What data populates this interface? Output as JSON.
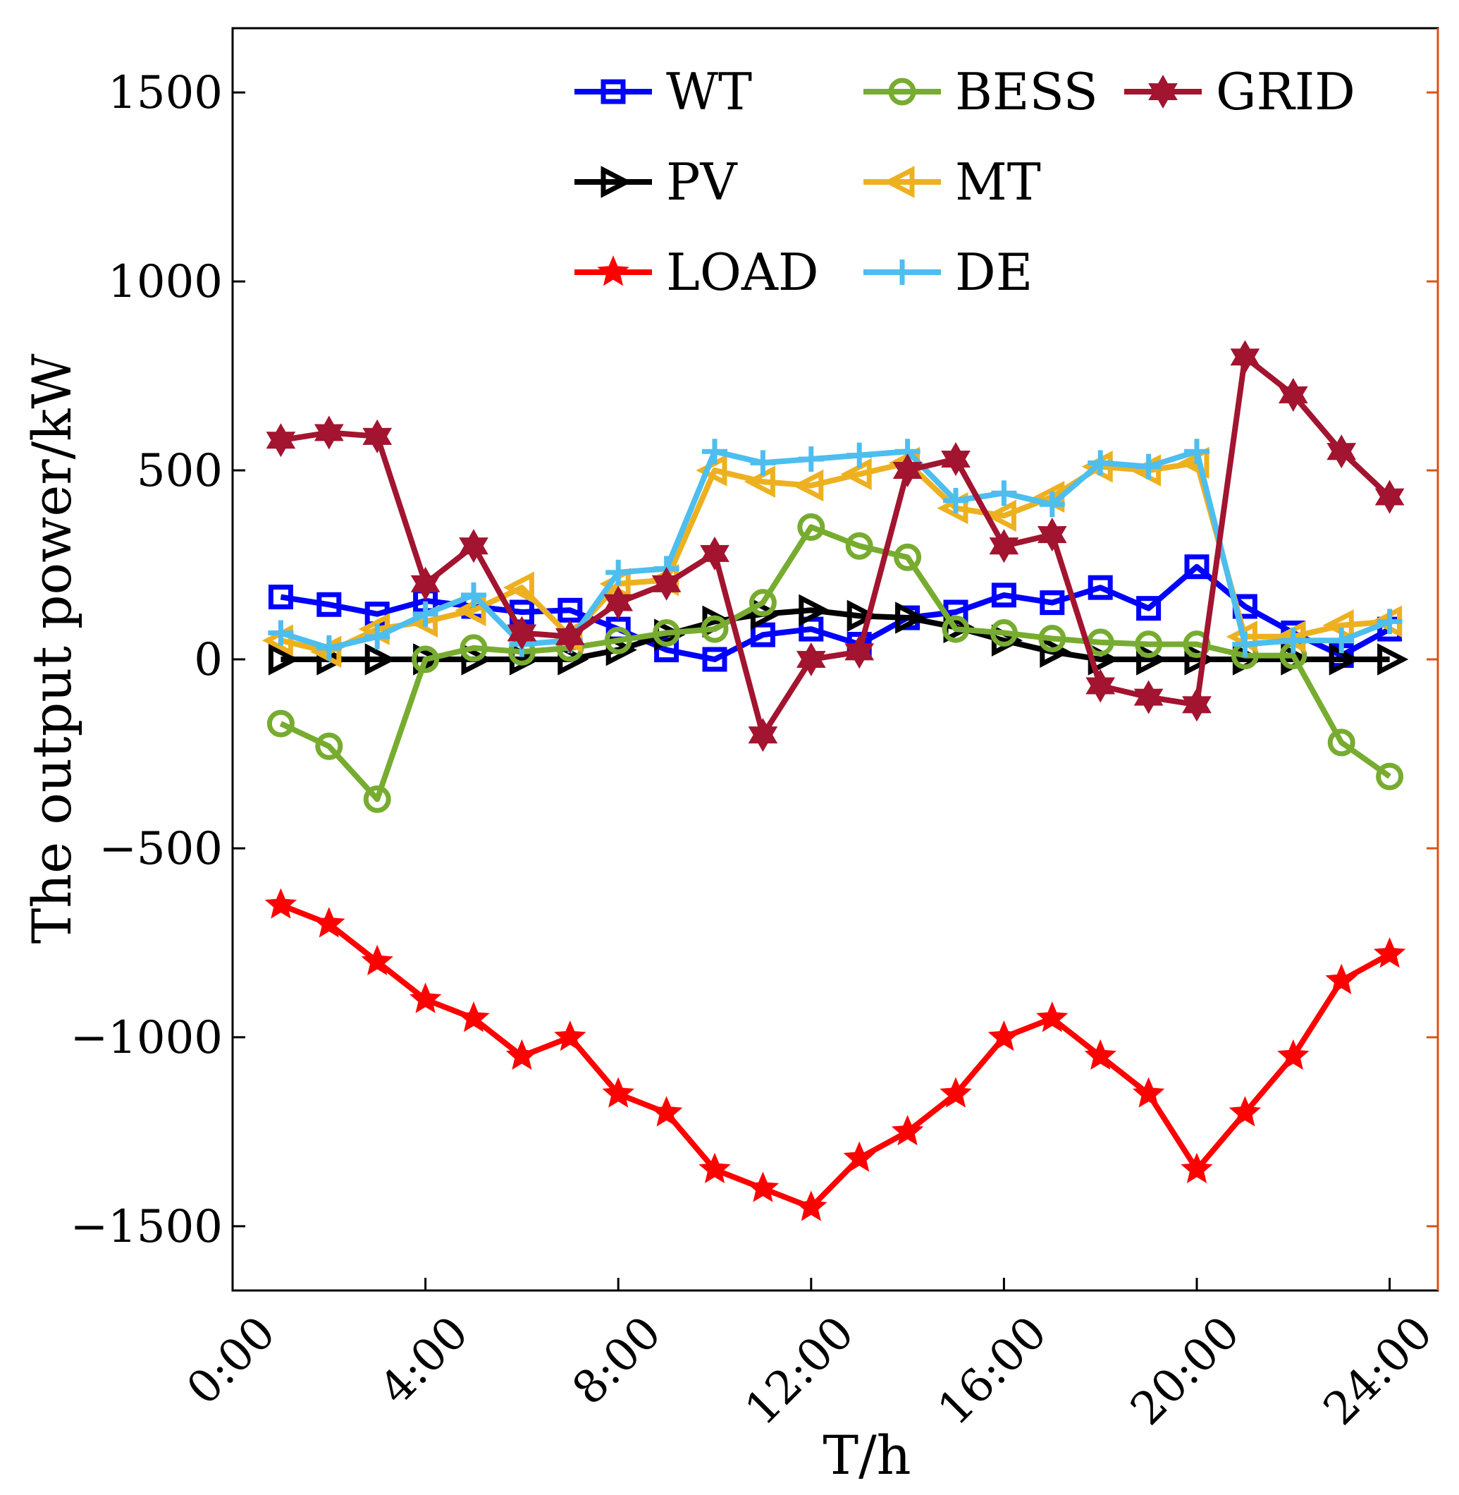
{
  "chart_data": {
    "type": "line",
    "title": "",
    "xlabel": "T/h",
    "ylabel": "The output power/kW",
    "xlim": [
      0,
      25
    ],
    "ylim": [
      -1670,
      1670
    ],
    "x_ticks": [
      0,
      4,
      8,
      12,
      16,
      20,
      24
    ],
    "x_tick_labels": [
      "0:00",
      "4:00",
      "8:00",
      "12:00",
      "16:00",
      "20:00",
      "24:00"
    ],
    "y_ticks": [
      -1500,
      -1000,
      -500,
      0,
      500,
      1000,
      1500
    ],
    "y_tick_labels": [
      "−1500",
      "−1000",
      "−500",
      "0",
      "500",
      "1000",
      "1500"
    ],
    "grid": false,
    "legend_position": "top-right",
    "x": [
      1,
      2,
      3,
      4,
      5,
      6,
      7,
      8,
      9,
      10,
      11,
      12,
      13,
      14,
      15,
      16,
      17,
      18,
      19,
      20,
      21,
      22,
      23,
      24
    ],
    "series": [
      {
        "name": "WT",
        "color": "#0000ff",
        "marker": "square",
        "values": [
          165,
          145,
          120,
          155,
          140,
          125,
          130,
          80,
          25,
          0,
          65,
          80,
          40,
          110,
          125,
          170,
          150,
          190,
          135,
          245,
          140,
          70,
          10,
          80
        ]
      },
      {
        "name": "PV",
        "color": "#000000",
        "marker": "triangle-right",
        "values": [
          0,
          0,
          0,
          0,
          0,
          0,
          0,
          25,
          65,
          100,
          120,
          130,
          115,
          110,
          85,
          50,
          20,
          0,
          0,
          0,
          0,
          0,
          0,
          0
        ]
      },
      {
        "name": "LOAD",
        "color": "#ff0000",
        "marker": "star",
        "values": [
          -650,
          -700,
          -800,
          -900,
          -950,
          -1050,
          -1000,
          -1150,
          -1200,
          -1350,
          -1400,
          -1450,
          -1320,
          -1250,
          -1150,
          -1000,
          -950,
          -1050,
          -1150,
          -1350,
          -1200,
          -1050,
          -850,
          -780
        ]
      },
      {
        "name": "BESS",
        "color": "#77ac30",
        "marker": "circle",
        "values": [
          -170,
          -230,
          -370,
          0,
          30,
          20,
          30,
          50,
          70,
          80,
          150,
          350,
          300,
          270,
          80,
          70,
          55,
          45,
          40,
          40,
          10,
          10,
          -220,
          -310
        ]
      },
      {
        "name": "MT",
        "color": "#edb120",
        "marker": "triangle-left",
        "values": [
          50,
          20,
          80,
          100,
          130,
          190,
          60,
          200,
          210,
          500,
          470,
          460,
          490,
          520,
          400,
          380,
          430,
          510,
          500,
          520,
          60,
          60,
          90,
          100
        ]
      },
      {
        "name": "DE",
        "color": "#4dbeee",
        "marker": "plus",
        "values": [
          70,
          30,
          60,
          120,
          170,
          40,
          50,
          230,
          240,
          550,
          520,
          530,
          540,
          550,
          420,
          440,
          410,
          520,
          510,
          550,
          40,
          50,
          50,
          100
        ]
      },
      {
        "name": "GRID",
        "color": "#a2142f",
        "marker": "hexagram",
        "values": [
          580,
          600,
          590,
          200,
          300,
          70,
          60,
          150,
          200,
          280,
          -200,
          0,
          20,
          500,
          530,
          300,
          330,
          -70,
          -100,
          -120,
          800,
          700,
          550,
          430
        ]
      }
    ]
  }
}
